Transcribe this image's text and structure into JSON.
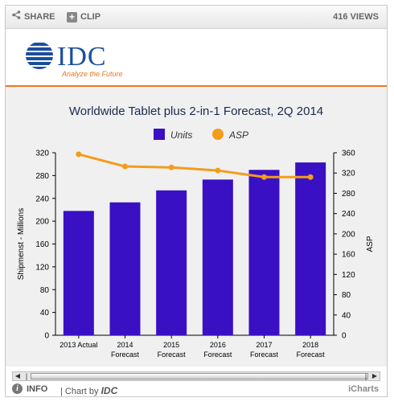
{
  "toolbar": {
    "share_label": "SHARE",
    "clip_label": "CLIP",
    "clip_icon": "+",
    "views": "416 VIEWS"
  },
  "logo": {
    "name": "IDC",
    "tagline": "Analyze the Future"
  },
  "footer": {
    "info_label": "INFO",
    "chart_by_prefix": "| Chart by",
    "chart_by_brand": "IDC",
    "icharts": "iCharts"
  },
  "colors": {
    "units": "#3a10c4",
    "asp": "#f59b1c",
    "accent": "#e87722",
    "logo_blue": "#1b4f9e"
  },
  "chart_data": {
    "type": "bar",
    "title": "Worldwide Tablet plus 2-in-1 Forecast, 2Q 2014",
    "categories": [
      [
        "2013 Actual"
      ],
      [
        "2014",
        "Forecast"
      ],
      [
        "2015",
        "Forecast"
      ],
      [
        "2016",
        "Forecast"
      ],
      [
        "2017",
        "Forecast"
      ],
      [
        "2018",
        "Forecast"
      ]
    ],
    "series": [
      {
        "name": "Units",
        "type": "bar",
        "axis": "left",
        "values": [
          218,
          233,
          254,
          273,
          290,
          303
        ]
      },
      {
        "name": "ASP",
        "type": "line",
        "axis": "right",
        "values": [
          357,
          333,
          331,
          325,
          312,
          312
        ]
      }
    ],
    "ylabel": "Shipmenst - Millions",
    "y2label": "ASP",
    "ylim": [
      0,
      320
    ],
    "y2lim": [
      0,
      360
    ],
    "yticks": [
      0,
      40,
      80,
      120,
      160,
      200,
      240,
      280,
      320
    ],
    "y2ticks": [
      0,
      40,
      80,
      120,
      160,
      200,
      240,
      280,
      320,
      360
    ],
    "legend": "top",
    "grid": false
  }
}
